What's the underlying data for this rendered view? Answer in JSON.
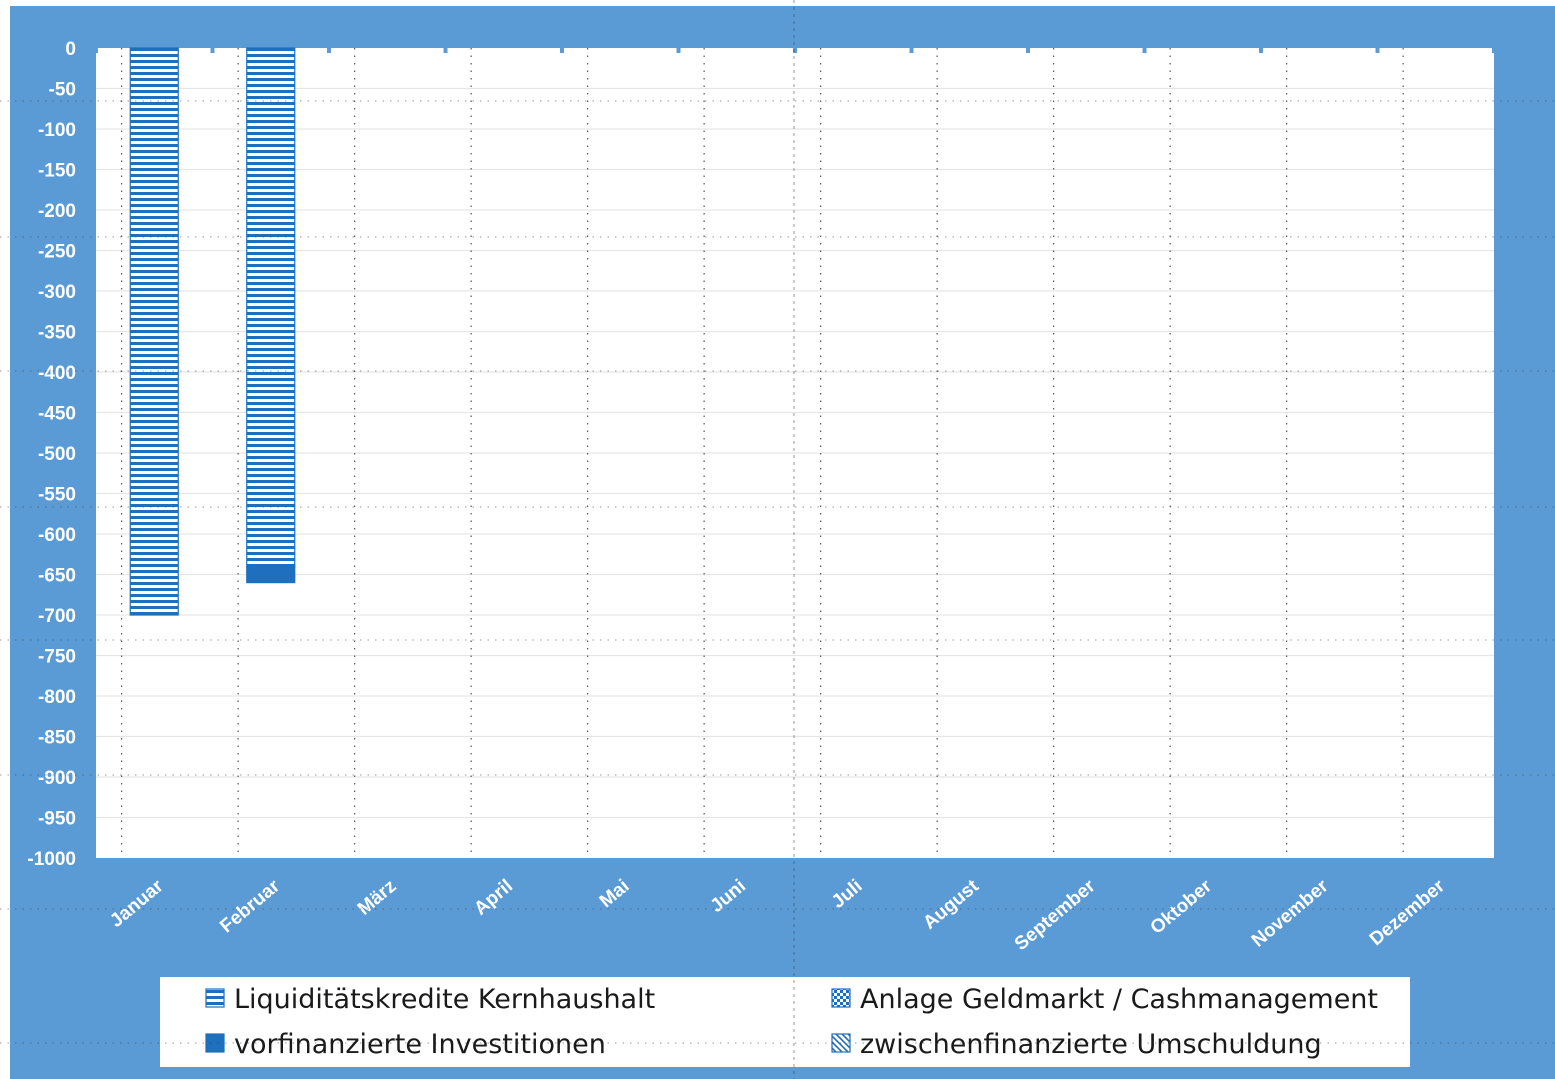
{
  "chart_data": {
    "type": "bar",
    "stacked": true,
    "categories": [
      "Januar",
      "Februar",
      "März",
      "April",
      "Mai",
      "Juni",
      "Juli",
      "August",
      "September",
      "Oktober",
      "November",
      "Dezember"
    ],
    "series": [
      {
        "name": "Liquiditätskredite Kernhaushalt",
        "pattern": "horizontal-stripes",
        "values": [
          -700,
          -640,
          0,
          0,
          0,
          0,
          0,
          0,
          0,
          0,
          0,
          0
        ]
      },
      {
        "name": "Anlage Geldmarkt / Cashmanagement",
        "pattern": "checker",
        "values": [
          0,
          0,
          0,
          0,
          0,
          0,
          0,
          0,
          0,
          0,
          0,
          0
        ]
      },
      {
        "name": "vorfinanzierte Investitionen",
        "pattern": "solid",
        "values": [
          0,
          -20,
          0,
          0,
          0,
          0,
          0,
          0,
          0,
          0,
          0,
          0
        ]
      },
      {
        "name": "zwischenfinanzierte Umschuldung",
        "pattern": "diagonal-stripes",
        "values": [
          0,
          0,
          0,
          0,
          0,
          0,
          0,
          0,
          0,
          0,
          0,
          0
        ]
      }
    ],
    "ylim": [
      -1000,
      0
    ],
    "yticks": [
      0,
      -50,
      -100,
      -150,
      -200,
      -250,
      -300,
      -350,
      -400,
      -450,
      -500,
      -550,
      -600,
      -650,
      -700,
      -750,
      -800,
      -850,
      -900,
      -950,
      -1000
    ],
    "grid": true,
    "legend_position": "bottom",
    "colors": {
      "background": "#5b9bd5",
      "plot_area": "#ffffff",
      "bar": "#1f6fbf",
      "text": "#ffffff",
      "legend_text": "#1a1a1a"
    }
  }
}
